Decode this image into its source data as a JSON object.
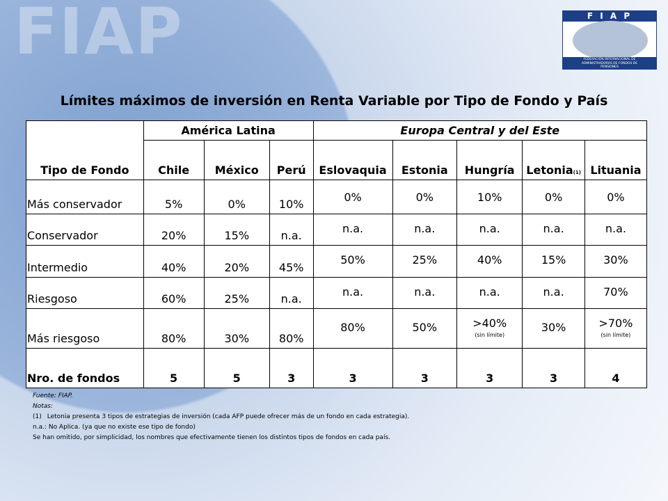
{
  "logo": {
    "letters": "F I A P",
    "caption": "FEDERACIÓN INTERNACIONAL DE ADMINISTRADORAS DE FONDOS DE PENSIONES"
  },
  "watermark": "FIAP",
  "title": "Límites máximos de inversión en Renta Variable por Tipo de Fondo y País",
  "table": {
    "corner": "Tipo de Fondo",
    "groups": [
      {
        "label": "América Latina",
        "span": 3
      },
      {
        "label": "Europa Central y del Este",
        "span": 5
      }
    ],
    "columns": [
      {
        "label": "Chile"
      },
      {
        "label": "México"
      },
      {
        "label": "Perú"
      },
      {
        "label": "Eslovaquia"
      },
      {
        "label": "Estonia"
      },
      {
        "label": "Hungría"
      },
      {
        "label": "Letonia",
        "sub": "(1)"
      },
      {
        "label": "Lituania"
      }
    ],
    "rows": [
      {
        "label": "Más conservador",
        "cells": [
          {
            "value": "5%"
          },
          {
            "value": "0%"
          },
          {
            "value": "10%"
          },
          {
            "value": "0%"
          },
          {
            "value": "0%"
          },
          {
            "value": "10%"
          },
          {
            "value": "0%"
          },
          {
            "value": "0%"
          }
        ]
      },
      {
        "label": "Conservador",
        "cells": [
          {
            "value": "20%"
          },
          {
            "value": "15%"
          },
          {
            "value": "n.a."
          },
          {
            "value": "n.a."
          },
          {
            "value": "n.a."
          },
          {
            "value": "n.a."
          },
          {
            "value": "n.a."
          },
          {
            "value": "n.a."
          }
        ]
      },
      {
        "label": "Intermedio",
        "cells": [
          {
            "value": "40%"
          },
          {
            "value": "20%"
          },
          {
            "value": "45%"
          },
          {
            "value": "50%"
          },
          {
            "value": "25%"
          },
          {
            "value": "40%"
          },
          {
            "value": "15%"
          },
          {
            "value": "30%"
          }
        ]
      },
      {
        "label": "Riesgoso",
        "cells": [
          {
            "value": "60%"
          },
          {
            "value": "25%"
          },
          {
            "value": "n.a."
          },
          {
            "value": "n.a."
          },
          {
            "value": "n.a."
          },
          {
            "value": "n.a."
          },
          {
            "value": "n.a."
          },
          {
            "value": "70%"
          }
        ]
      },
      {
        "label": "Más riesgoso",
        "cells": [
          {
            "value": "80%"
          },
          {
            "value": "30%"
          },
          {
            "value": "80%"
          },
          {
            "value": "80%"
          },
          {
            "value": "50%"
          },
          {
            "value": ">40%",
            "note": "(sin límite)"
          },
          {
            "value": "30%"
          },
          {
            "value": ">70%",
            "note": "(sin límite)"
          }
        ]
      }
    ],
    "total": {
      "label": "Nro. de fondos",
      "cells": [
        {
          "value": "5"
        },
        {
          "value": "5"
        },
        {
          "value": "3"
        },
        {
          "value": "3"
        },
        {
          "value": "3"
        },
        {
          "value": "3"
        },
        {
          "value": "3"
        },
        {
          "value": "4"
        }
      ]
    }
  },
  "notes": {
    "source": "Fuente: FIAP.",
    "heading": "Notas:",
    "items": [
      {
        "marker": "(1)",
        "text": "Letonia presenta 3 tipos de estrategias de inversión (cada AFP puede ofrecer más de un fondo en cada estrategia)."
      }
    ],
    "lines": [
      "n.a.: No Aplica. (ya que no existe ese tipo de fondo)",
      "Se han omitido, por simplicidad, los nombres que efectivamente tienen los distintos tipos de fondos en cada país."
    ]
  }
}
